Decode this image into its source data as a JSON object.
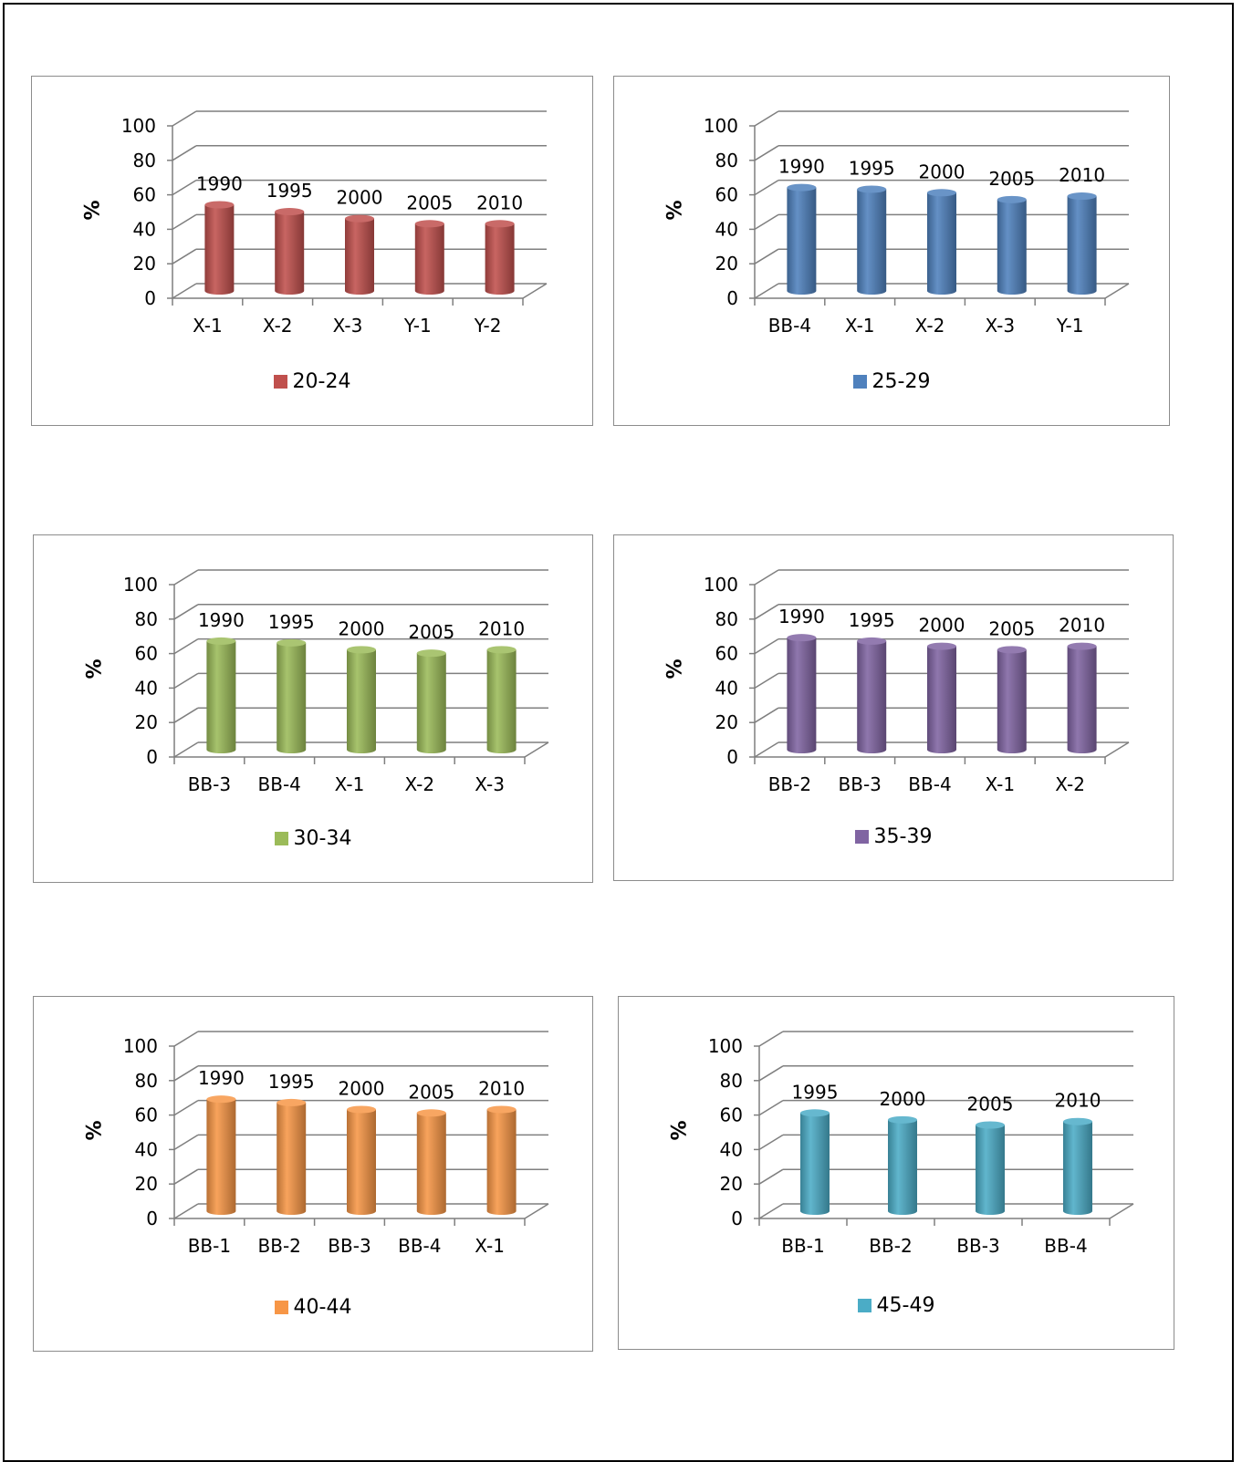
{
  "chart_data": [
    {
      "type": "bar",
      "title": "",
      "ylabel": "%",
      "ylim": [
        0,
        100
      ],
      "yticks": [
        "0",
        "20",
        "40",
        "60",
        "80",
        "100"
      ],
      "categories": [
        "X-1",
        "X-2",
        "X-3",
        "Y-1",
        "Y-2"
      ],
      "data_labels": [
        "1990",
        "1995",
        "2000",
        "2005",
        "2010"
      ],
      "series": [
        {
          "name": "20-24",
          "values": [
            50,
            46,
            42,
            39,
            39
          ]
        }
      ],
      "legend": "bottom",
      "grid": true,
      "color": "#c0504d"
    },
    {
      "type": "bar",
      "title": "",
      "ylabel": "%",
      "ylim": [
        0,
        100
      ],
      "yticks": [
        "0",
        "20",
        "40",
        "60",
        "80",
        "100"
      ],
      "categories": [
        "BB-4",
        "X-1",
        "X-2",
        "X-3",
        "Y-1"
      ],
      "data_labels": [
        "1990",
        "1995",
        "2000",
        "2005",
        "2010"
      ],
      "series": [
        {
          "name": "25-29",
          "values": [
            60,
            59,
            57,
            53,
            55
          ]
        }
      ],
      "legend": "bottom",
      "grid": true,
      "color": "#4f81bd"
    },
    {
      "type": "bar",
      "title": "",
      "ylabel": "%",
      "ylim": [
        0,
        100
      ],
      "yticks": [
        "0",
        "20",
        "40",
        "60",
        "80",
        "100"
      ],
      "categories": [
        "BB-3",
        "BB-4",
        "X-1",
        "X-2",
        "X-3"
      ],
      "data_labels": [
        "1990",
        "1995",
        "2000",
        "2005",
        "2010"
      ],
      "series": [
        {
          "name": "30-34",
          "values": [
            63,
            62,
            58,
            56,
            58
          ]
        }
      ],
      "legend": "bottom",
      "grid": true,
      "color": "#9bbb59"
    },
    {
      "type": "bar",
      "title": "",
      "ylabel": "%",
      "ylim": [
        0,
        100
      ],
      "yticks": [
        "0",
        "20",
        "40",
        "60",
        "80",
        "100"
      ],
      "categories": [
        "BB-2",
        "BB-3",
        "BB-4",
        "X-1",
        "X-2"
      ],
      "data_labels": [
        "1990",
        "1995",
        "2000",
        "2005",
        "2010"
      ],
      "series": [
        {
          "name": "35-39",
          "values": [
            65,
            63,
            60,
            58,
            60
          ]
        }
      ],
      "legend": "bottom",
      "grid": true,
      "color": "#8064a2"
    },
    {
      "type": "bar",
      "title": "",
      "ylabel": "%",
      "ylim": [
        0,
        100
      ],
      "yticks": [
        "0",
        "20",
        "40",
        "60",
        "80",
        "100"
      ],
      "categories": [
        "BB-1",
        "BB-2",
        "BB-3",
        "BB-4",
        "X-1"
      ],
      "data_labels": [
        "1990",
        "1995",
        "2000",
        "2005",
        "2010"
      ],
      "series": [
        {
          "name": "40-44",
          "values": [
            65,
            63,
            59,
            57,
            59
          ]
        }
      ],
      "legend": "bottom",
      "grid": true,
      "color": "#f79646"
    },
    {
      "type": "bar",
      "title": "",
      "ylabel": "%",
      "ylim": [
        0,
        100
      ],
      "yticks": [
        "0",
        "20",
        "40",
        "60",
        "80",
        "100"
      ],
      "categories": [
        "BB-1",
        "BB-2",
        "BB-3",
        "BB-4"
      ],
      "data_labels": [
        "1995",
        "2000",
        "2005",
        "2010"
      ],
      "series": [
        {
          "name": "45-49",
          "values": [
            57,
            53,
            50,
            52
          ]
        }
      ],
      "legend": "bottom",
      "grid": true,
      "color": "#4bacc6"
    }
  ]
}
